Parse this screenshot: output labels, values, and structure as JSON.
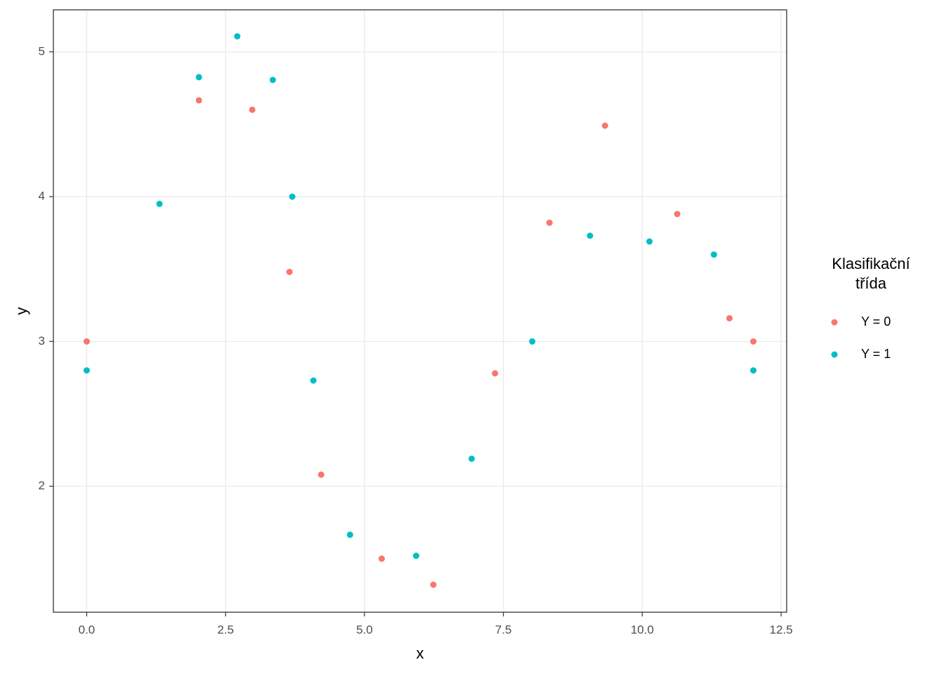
{
  "chart_data": {
    "type": "scatter",
    "x_label": "x",
    "y_label": "y",
    "legend_title": "Klasifikační\ntřída",
    "legend_position": "right",
    "xlim": [
      -0.6,
      12.6
    ],
    "ylim": [
      1.13,
      5.29
    ],
    "xticks": [
      {
        "value": 0,
        "label": "0.0"
      },
      2.5,
      {
        "value": 5,
        "label": "5.0"
      },
      7.5,
      {
        "value": 10,
        "label": "10.0"
      },
      12.5
    ],
    "yticks": [
      2,
      3,
      4,
      5
    ],
    "grid": true,
    "series": [
      {
        "name": "Y = 0",
        "color": "#F8766D",
        "x": [
          0,
          2.02,
          2.98,
          3.65,
          4.22,
          5.31,
          6.24,
          7.35,
          8.33,
          9.33,
          10.63,
          11.57,
          12
        ],
        "values": [
          3,
          4.665,
          4.6,
          3.48,
          2.08,
          1.5,
          1.32,
          2.78,
          3.82,
          4.49,
          3.88,
          3.16,
          3
        ]
      },
      {
        "name": "Y = 1",
        "color": "#00BFC4",
        "x": [
          0,
          1.31,
          2.02,
          2.71,
          3.35,
          3.7,
          4.08,
          4.74,
          5.93,
          6.93,
          8.02,
          9.06,
          10.13,
          11.29,
          12
        ],
        "values": [
          2.8,
          3.95,
          4.825,
          5.107,
          4.806,
          4,
          2.73,
          1.665,
          1.52,
          2.19,
          3,
          3.73,
          3.69,
          3.6,
          2.8
        ]
      }
    ]
  }
}
